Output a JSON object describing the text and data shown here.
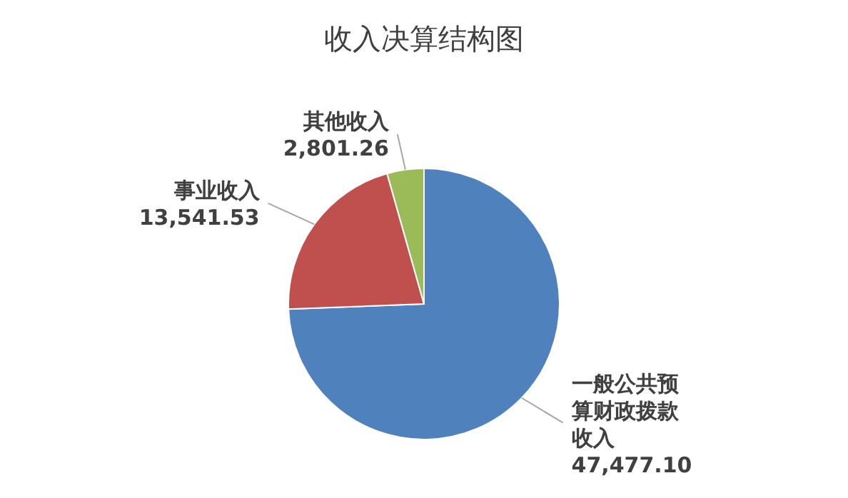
{
  "chart_data": {
    "type": "pie",
    "title": "收入决算结构图",
    "categories": [
      "一般公共预算财政拨款收入",
      "事业收入",
      "其他收入"
    ],
    "values": [
      47477.1,
      13541.53,
      2801.26
    ],
    "value_labels": [
      "47,477.10",
      "13,541.53",
      "2,801.26"
    ],
    "colors": [
      "#4f81bd",
      "#c0504d",
      "#9bbb59"
    ],
    "legend": false
  }
}
